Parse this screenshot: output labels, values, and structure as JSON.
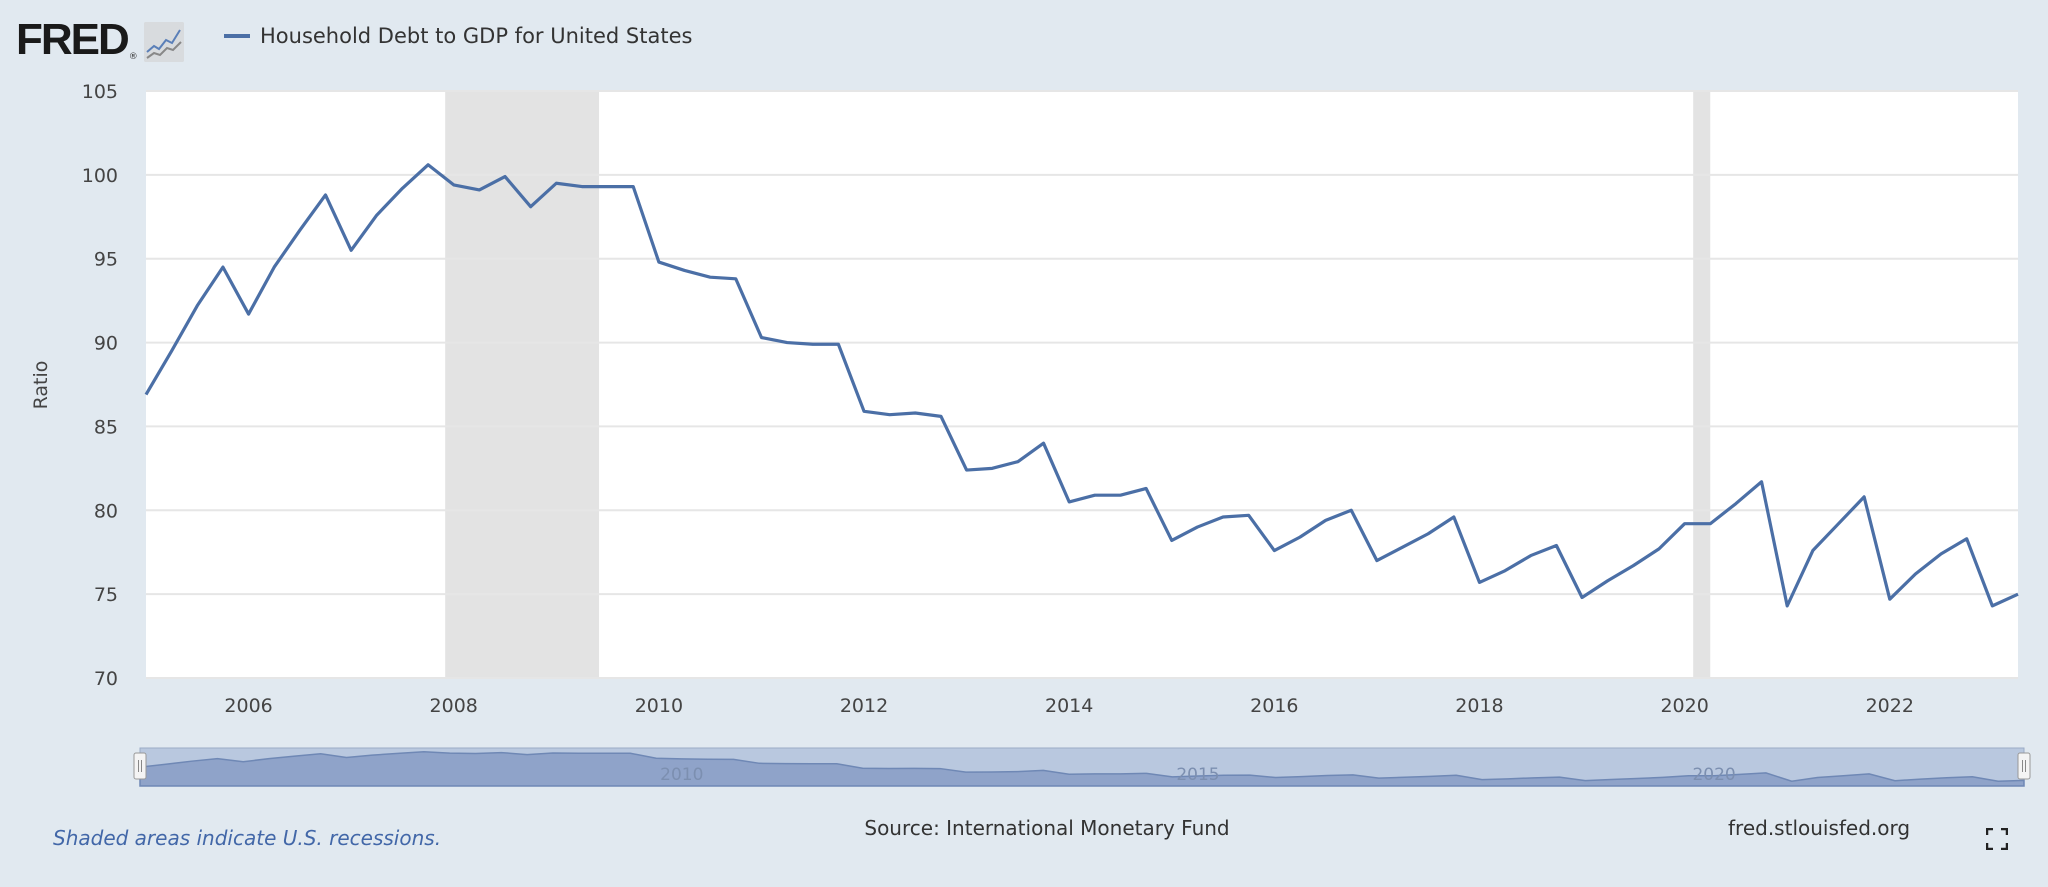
{
  "header": {
    "logo": "FRED",
    "series_title": "Household Debt to GDP for United States"
  },
  "footer": {
    "recession_note": "Shaded areas indicate U.S. recessions.",
    "source": "Source: International Monetary Fund",
    "url": "fred.stlouisfed.org",
    "fullscreen_icon": "fullscreen-icon"
  },
  "colors": {
    "series": "#4b6fa6",
    "recession": "#e3e3e3",
    "background": "#e1e9f0",
    "navigator_fill": "#b9c8df"
  },
  "chart_data": {
    "type": "line",
    "title": "",
    "xlabel": "",
    "ylabel": "Ratio",
    "ylim": [
      70,
      105
    ],
    "xlim": [
      "2005-01-01",
      "2023-04-01"
    ],
    "yticks": [
      "70",
      "75",
      "80",
      "85",
      "90",
      "95",
      "100",
      "105"
    ],
    "xticks": [
      "2006",
      "2008",
      "2010",
      "2012",
      "2014",
      "2016",
      "2018",
      "2020",
      "2022"
    ],
    "navigator_labels": [
      "2010",
      "2015",
      "2020"
    ],
    "grid": true,
    "legend": "top-left",
    "recessions": [
      [
        "2007-12-01",
        "2009-06-01"
      ],
      [
        "2020-02-01",
        "2020-04-01"
      ]
    ],
    "series": [
      {
        "name": "Household Debt to GDP for United States",
        "frequency": "quarterly",
        "start": "2005-01-01",
        "values": [
          86.9,
          89.5,
          92.2,
          94.5,
          91.7,
          94.5,
          96.7,
          98.8,
          95.5,
          97.6,
          99.2,
          100.6,
          99.4,
          99.1,
          99.9,
          98.1,
          99.5,
          99.3,
          99.3,
          99.3,
          94.8,
          94.3,
          93.9,
          93.8,
          90.3,
          90.0,
          89.9,
          89.9,
          85.9,
          85.7,
          85.8,
          85.6,
          82.4,
          82.5,
          82.9,
          84.0,
          80.5,
          80.9,
          80.9,
          81.3,
          78.2,
          79.0,
          79.6,
          79.7,
          77.6,
          78.4,
          79.4,
          80.0,
          77.0,
          77.8,
          78.6,
          79.6,
          75.7,
          76.4,
          77.3,
          77.9,
          74.8,
          75.8,
          76.7,
          77.7,
          79.2,
          79.2,
          80.4,
          81.7,
          74.3,
          77.6,
          79.2,
          80.8,
          74.7,
          76.2,
          77.4,
          78.3,
          74.3,
          75.0
        ]
      }
    ]
  }
}
